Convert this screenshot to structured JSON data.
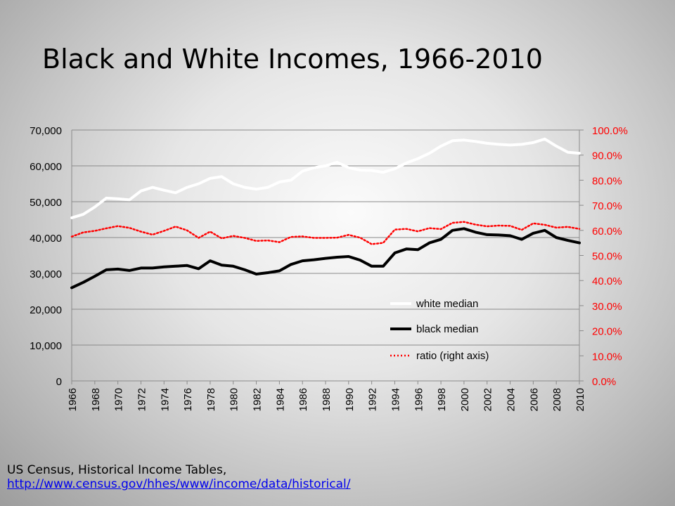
{
  "slide": {
    "title": "Black and White Incomes, 1966-2010"
  },
  "source": {
    "text": "US Census, Historical Income Tables,",
    "link": "http://www.census.gov/hhes/www/income/data/historical/"
  },
  "colors": {
    "white_series": "#ffffff",
    "black_series": "#000000",
    "ratio_series": "#ff0000",
    "right_axis_text": "#ff0000"
  },
  "chart_data": {
    "type": "line",
    "title": "",
    "x": [
      1966,
      1967,
      1968,
      1969,
      1970,
      1971,
      1972,
      1973,
      1974,
      1975,
      1976,
      1977,
      1978,
      1979,
      1980,
      1981,
      1982,
      1983,
      1984,
      1985,
      1986,
      1987,
      1988,
      1989,
      1990,
      1991,
      1992,
      1993,
      1994,
      1995,
      1996,
      1997,
      1998,
      1999,
      2000,
      2001,
      2002,
      2003,
      2004,
      2005,
      2006,
      2007,
      2008,
      2009,
      2010
    ],
    "x_tick_labels": [
      "1966",
      "1968",
      "1970",
      "1972",
      "1974",
      "1976",
      "1978",
      "1980",
      "1982",
      "1984",
      "1986",
      "1988",
      "1990",
      "1992",
      "1994",
      "1996",
      "1998",
      "2000",
      "2002",
      "2004",
      "2006",
      "2008",
      "2010"
    ],
    "y_left": {
      "range": [
        0,
        70000
      ],
      "tick_labels": [
        "0",
        "10,000",
        "20,000",
        "30,000",
        "40,000",
        "50,000",
        "60,000",
        "70,000"
      ]
    },
    "y_right": {
      "range": [
        0,
        100
      ],
      "tick_labels": [
        "0.0%",
        "10.0%",
        "20.0%",
        "30.0%",
        "40.0%",
        "50.0%",
        "60.0%",
        "70.0%",
        "80.0%",
        "90.0%",
        "100.0%"
      ]
    },
    "grid": true,
    "legend_position": "bottom-right (inside plot)",
    "series": [
      {
        "name": "white median",
        "axis": "left",
        "style": "solid",
        "values": [
          45500,
          46500,
          48500,
          51000,
          50800,
          50500,
          53000,
          54000,
          53200,
          52500,
          54000,
          55000,
          56500,
          57000,
          55000,
          54000,
          53500,
          54000,
          55500,
          56000,
          58500,
          59500,
          60000,
          61000,
          59500,
          58800,
          58700,
          58200,
          59200,
          60800,
          62000,
          63500,
          65500,
          67000,
          67200,
          66800,
          66300,
          66000,
          65800,
          66000,
          66500,
          67500,
          65500,
          63800,
          63500
        ]
      },
      {
        "name": "black median",
        "axis": "left",
        "style": "solid",
        "values": [
          26000,
          27500,
          29200,
          31000,
          31200,
          30800,
          31500,
          31500,
          31800,
          32000,
          32200,
          31300,
          33500,
          32300,
          32000,
          31000,
          29800,
          30200,
          30700,
          32500,
          33500,
          33800,
          34200,
          34500,
          34700,
          33700,
          32000,
          32000,
          35700,
          36800,
          36600,
          38500,
          39500,
          42000,
          42500,
          41500,
          40800,
          40700,
          40500,
          39500,
          41200,
          42000,
          40000,
          39200,
          38500
        ]
      },
      {
        "name": "ratio (right axis)",
        "axis": "right",
        "style": "dotted",
        "values": [
          57.5,
          59.2,
          59.8,
          60.8,
          61.7,
          61.0,
          59.5,
          58.3,
          59.8,
          61.5,
          60.0,
          57.0,
          59.5,
          56.8,
          57.8,
          57.0,
          55.8,
          56.0,
          55.3,
          57.4,
          57.6,
          57.0,
          57.0,
          57.1,
          58.2,
          57.1,
          54.5,
          55.0,
          60.3,
          60.6,
          59.6,
          60.9,
          60.5,
          63.0,
          63.4,
          62.3,
          61.6,
          61.9,
          61.8,
          60.2,
          62.8,
          62.2,
          61.1,
          61.4,
          60.6
        ]
      }
    ]
  }
}
